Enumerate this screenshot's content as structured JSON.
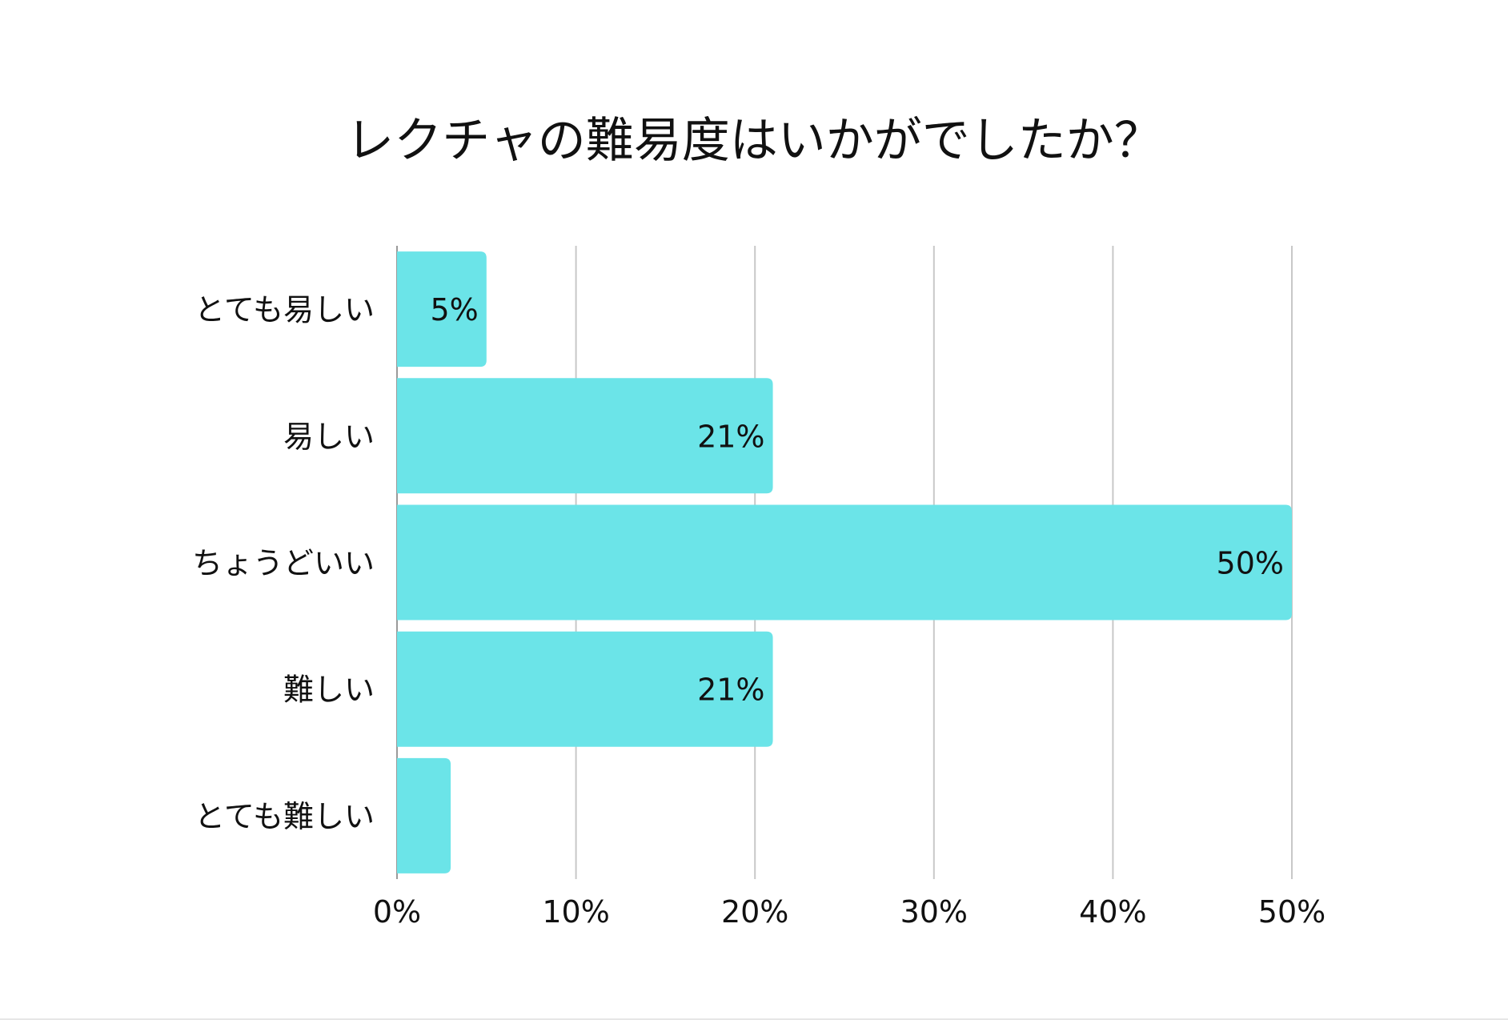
{
  "chart_data": {
    "type": "bar",
    "orientation": "horizontal",
    "title": "レクチャの難易度はいかがでしたか？",
    "categories": [
      "とても易しい",
      "易しい",
      "ちょうどいい",
      "難しい",
      "とても難しい"
    ],
    "values": [
      5,
      21,
      50,
      21,
      3
    ],
    "value_labels": [
      "5%",
      "21%",
      "50%",
      "21%",
      ""
    ],
    "xlim": [
      0,
      50
    ],
    "x_ticks": [
      "0%",
      "10%",
      "20%",
      "30%",
      "40%",
      "50%"
    ],
    "grid": "vertical",
    "bar_color": "#6be4e8",
    "grid_color": "#c8c8c8"
  }
}
